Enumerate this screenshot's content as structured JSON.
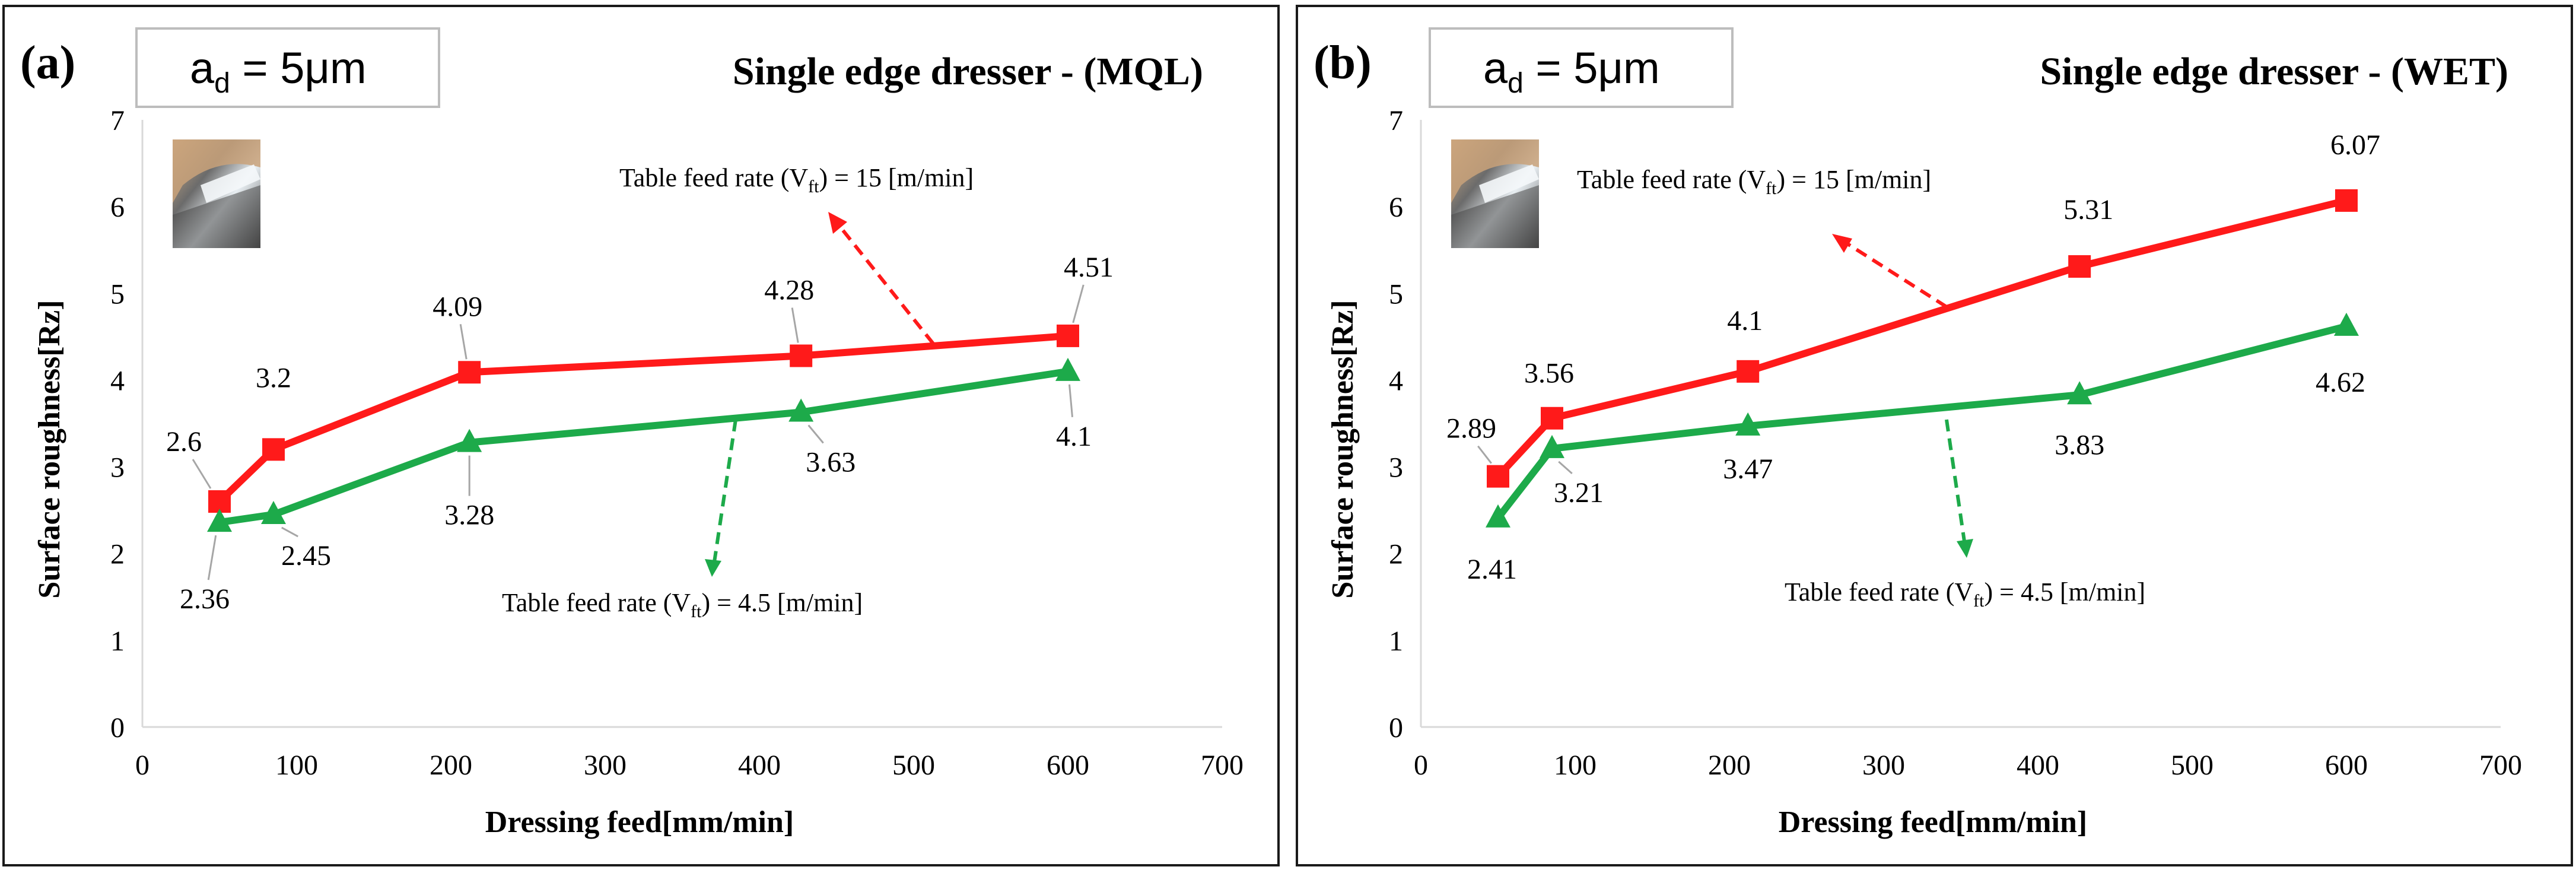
{
  "colors": {
    "series_high": "#ff1a1a",
    "series_low": "#1daa4a",
    "axis": "#d9d9d9",
    "frame": "#1a1a1a"
  },
  "chart_data": [
    {
      "panel_label": "(a)",
      "type": "line",
      "depth_label": {
        "prefix": "a",
        "subscript": "d",
        "suffix": " = 5μm"
      },
      "title": "Single edge dresser - (MQL)",
      "xlabel": "Dressing feed[mm/min]",
      "ylabel": "Surface roughness[Rz]",
      "xlim": [
        0,
        700
      ],
      "ylim": [
        0,
        7
      ],
      "xticks": [
        "0",
        "100",
        "200",
        "300",
        "400",
        "500",
        "600",
        "700"
      ],
      "yticks": [
        "0",
        "1",
        "2",
        "3",
        "4",
        "5",
        "6",
        "7"
      ],
      "series": [
        {
          "name": "Table feed rate (Vft) = 15 [m/min]",
          "marker": "square",
          "color": "#ff1a1a",
          "x": [
            50,
            85,
            212,
            427,
            600
          ],
          "values": [
            2.6,
            3.2,
            4.09,
            4.28,
            4.51
          ],
          "labels": [
            "2.6",
            "3.2",
            "4.09",
            "4.28",
            "4.51"
          ]
        },
        {
          "name": "Table feed rate (Vft) = 4.5 [m/min]",
          "marker": "triangle",
          "color": "#1daa4a",
          "x": [
            50,
            85,
            212,
            427,
            600
          ],
          "values": [
            2.36,
            2.45,
            3.28,
            3.63,
            4.1
          ],
          "labels": [
            "2.36",
            "2.45",
            "3.28",
            "3.63",
            "4.1"
          ]
        }
      ],
      "annotations": [
        {
          "pre": "Table feed rate (V",
          "sub": "ft",
          "post": ") = 15 [m/min]"
        },
        {
          "pre": "Table feed rate (V",
          "sub": "ft",
          "post": ") = 4.5 [m/min]"
        }
      ]
    },
    {
      "panel_label": "(b)",
      "type": "line",
      "depth_label": {
        "prefix": "a",
        "subscript": "d",
        "suffix": " = 5μm"
      },
      "title": "Single edge dresser - (WET)",
      "xlabel": "Dressing feed[mm/min]",
      "ylabel": "Surface roughness[Rz]",
      "xlim": [
        0,
        700
      ],
      "ylim": [
        0,
        7
      ],
      "xticks": [
        "0",
        "100",
        "200",
        "300",
        "400",
        "500",
        "600",
        "700"
      ],
      "yticks": [
        "0",
        "1",
        "2",
        "3",
        "4",
        "5",
        "6",
        "7"
      ],
      "series": [
        {
          "name": "Table feed rate (Vft) = 15 [m/min]",
          "marker": "square",
          "color": "#ff1a1a",
          "x": [
            50,
            85,
            212,
            427,
            600
          ],
          "values": [
            2.89,
            3.56,
            4.1,
            5.31,
            6.07
          ],
          "labels": [
            "2.89",
            "3.56",
            "4.1",
            "5.31",
            "6.07"
          ]
        },
        {
          "name": "Table feed rate (Vft) = 4.5 [m/min]",
          "marker": "triangle",
          "color": "#1daa4a",
          "x": [
            50,
            85,
            212,
            427,
            600
          ],
          "values": [
            2.41,
            3.21,
            3.47,
            3.83,
            4.62
          ],
          "labels": [
            "2.41",
            "3.21",
            "3.47",
            "3.83",
            "4.62"
          ]
        }
      ],
      "annotations": [
        {
          "pre": "Table feed rate (V",
          "sub": "ft",
          "post": ") = 15 [m/min]"
        },
        {
          "pre": "Table feed rate (V",
          "sub": "ft",
          "post": ") = 4.5 [m/min]"
        }
      ]
    }
  ]
}
